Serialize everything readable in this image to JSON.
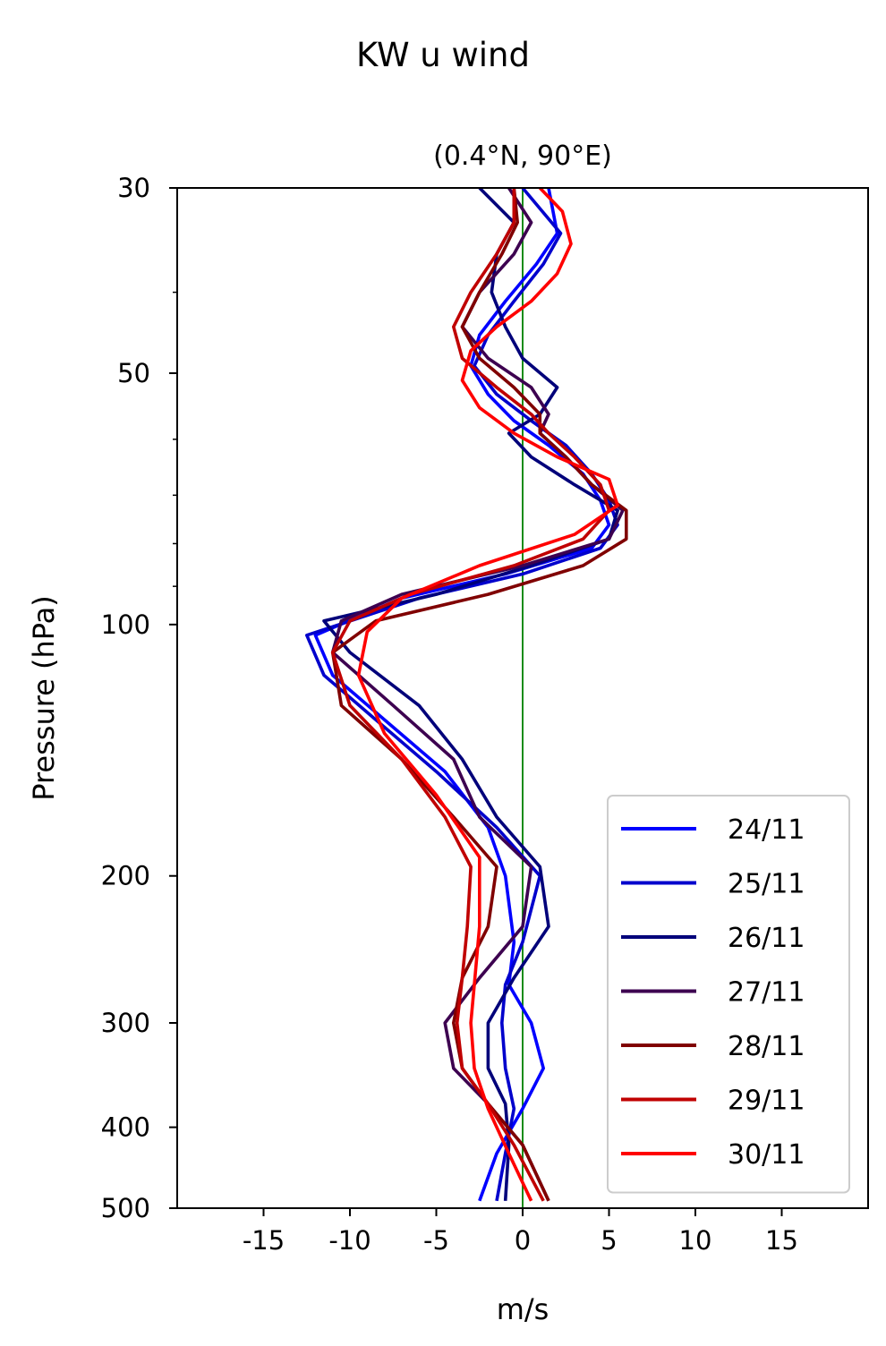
{
  "chart_data": {
    "type": "line",
    "title": "KW u wind",
    "subtitle": "(0.4°N, 90°E)",
    "xlabel": "m/s",
    "ylabel": "Pressure (hPa)",
    "xlim": [
      -20,
      20
    ],
    "ylim": [
      500,
      30
    ],
    "yscale": "log",
    "xticks": [
      -15,
      -10,
      -5,
      0,
      5,
      10,
      15
    ],
    "xtick_labels": [
      "-15",
      "-10",
      "-5",
      "0",
      "5",
      "10",
      "15"
    ],
    "yticks": [
      30,
      50,
      100,
      200,
      300,
      400,
      500
    ],
    "ytick_labels": [
      "30",
      "50",
      "100",
      "200",
      "300",
      "400",
      "500"
    ],
    "yminor_ticks": [
      40,
      60,
      70,
      80,
      90
    ],
    "grid": false,
    "legend_position": "lower-right",
    "reference_line": {
      "x": 0,
      "color": "#008000"
    },
    "series": [
      {
        "name": "24/11",
        "color": "#0000ff",
        "x": [
          1.5,
          2.0,
          0.8,
          -1.0,
          -2.5,
          -3.0,
          -2.0,
          -0.5,
          1.5,
          3.5,
          4.5,
          5.0,
          4.0,
          -1.0,
          -7.0,
          -12.0,
          -11.0,
          -8.0,
          -4.5,
          -2.0,
          -1.0,
          -0.5,
          -0.8,
          0.5,
          1.2,
          0.0,
          -1.5,
          -2.5
        ],
        "y": [
          30,
          34,
          37,
          41,
          45,
          49,
          53,
          57,
          61,
          66,
          71,
          76,
          81,
          87,
          93,
          103,
          115,
          130,
          150,
          175,
          200,
          240,
          270,
          300,
          340,
          380,
          430,
          490
        ]
      },
      {
        "name": "25/11",
        "color": "#0000cc",
        "x": [
          0.0,
          2.2,
          1.2,
          -0.5,
          -2.0,
          -2.8,
          -1.5,
          0.5,
          2.5,
          4.0,
          5.0,
          5.5,
          4.5,
          0.0,
          -6.0,
          -12.5,
          -11.5,
          -8.5,
          -5.0,
          -1.5,
          1.0,
          0.0,
          -1.0,
          -1.2,
          -1.0,
          -0.5,
          -1.0,
          -1.5
        ],
        "y": [
          30,
          34,
          37,
          41,
          45,
          49,
          53,
          57,
          61,
          66,
          71,
          76,
          81,
          87,
          93,
          103,
          115,
          130,
          150,
          175,
          200,
          240,
          270,
          300,
          340,
          380,
          430,
          490
        ]
      },
      {
        "name": "26/11",
        "color": "#00007a",
        "x": [
          -2.5,
          -0.5,
          -1.5,
          -1.8,
          -1.0,
          0.0,
          2.0,
          1.0,
          -0.8,
          0.5,
          3.0,
          5.5,
          5.0,
          0.5,
          -5.0,
          -11.5,
          -10.0,
          -6.0,
          -3.5,
          -1.5,
          1.0,
          1.5,
          -0.5,
          -2.0,
          -2.0,
          -1.0,
          -0.8,
          -1.0
        ],
        "y": [
          30,
          33,
          36,
          40,
          44,
          48,
          52,
          56,
          59,
          63,
          68,
          73,
          79,
          85,
          92,
          99,
          108,
          125,
          145,
          170,
          195,
          230,
          265,
          300,
          340,
          375,
          420,
          490
        ]
      },
      {
        "name": "27/11",
        "color": "#3d0050",
        "x": [
          -0.8,
          0.5,
          -0.5,
          -2.5,
          -3.5,
          -2.0,
          0.5,
          1.5,
          1.0,
          2.5,
          4.0,
          5.8,
          5.0,
          0.0,
          -7.0,
          -10.5,
          -11.0,
          -7.5,
          -4.0,
          -2.5,
          0.5,
          0.0,
          -2.5,
          -4.5,
          -4.0,
          -2.0,
          0.0,
          1.5
        ],
        "y": [
          30,
          33,
          36,
          40,
          44,
          48,
          52,
          56,
          59,
          63,
          68,
          73,
          79,
          85,
          92,
          99,
          108,
          125,
          145,
          170,
          195,
          230,
          265,
          300,
          340,
          375,
          420,
          490
        ]
      },
      {
        "name": "28/11",
        "color": "#800000",
        "x": [
          -0.5,
          -0.3,
          -1.2,
          -2.5,
          -3.5,
          -2.5,
          -0.5,
          1.0,
          1.0,
          2.5,
          4.0,
          6.0,
          6.0,
          3.5,
          -2.0,
          -8.5,
          -11.0,
          -10.5,
          -7.0,
          -4.0,
          -1.5,
          -2.0,
          -3.5,
          -4.0,
          -3.5,
          -2.0,
          0.0,
          1.5
        ],
        "y": [
          30,
          33,
          36,
          40,
          44,
          48,
          52,
          56,
          59,
          63,
          68,
          73,
          79,
          85,
          92,
          99,
          108,
          125,
          145,
          170,
          195,
          230,
          265,
          300,
          340,
          375,
          420,
          490
        ]
      },
      {
        "name": "29/11",
        "color": "#c00000",
        "x": [
          -0.5,
          -0.5,
          -1.5,
          -3.0,
          -4.0,
          -3.5,
          -1.5,
          0.5,
          1.5,
          3.0,
          4.5,
          5.0,
          3.5,
          -0.5,
          -6.5,
          -10.0,
          -11.0,
          -10.0,
          -7.0,
          -4.5,
          -3.0,
          -3.2,
          -3.5,
          -3.8,
          -3.5,
          -2.0,
          -0.5,
          1.2
        ],
        "y": [
          30,
          33,
          36,
          40,
          44,
          48,
          52,
          56,
          59,
          63,
          68,
          73,
          79,
          85,
          92,
          99,
          108,
          125,
          145,
          170,
          195,
          230,
          265,
          300,
          340,
          375,
          420,
          490
        ]
      },
      {
        "name": "30/11",
        "color": "#ff0000",
        "x": [
          1.0,
          2.3,
          2.8,
          2.0,
          0.5,
          -1.5,
          -3.0,
          -3.5,
          -2.5,
          -0.5,
          2.0,
          5.0,
          5.5,
          3.0,
          -2.5,
          -7.0,
          -9.0,
          -9.5,
          -8.0,
          -5.0,
          -2.5,
          -2.5,
          -2.8,
          -3.0,
          -2.8,
          -2.0,
          -0.8,
          0.5
        ],
        "y": [
          30,
          32,
          35,
          38,
          41,
          44,
          47,
          51,
          55,
          59,
          63,
          67,
          72,
          78,
          85,
          93,
          102,
          115,
          135,
          160,
          190,
          230,
          270,
          300,
          340,
          380,
          430,
          490
        ]
      }
    ]
  }
}
